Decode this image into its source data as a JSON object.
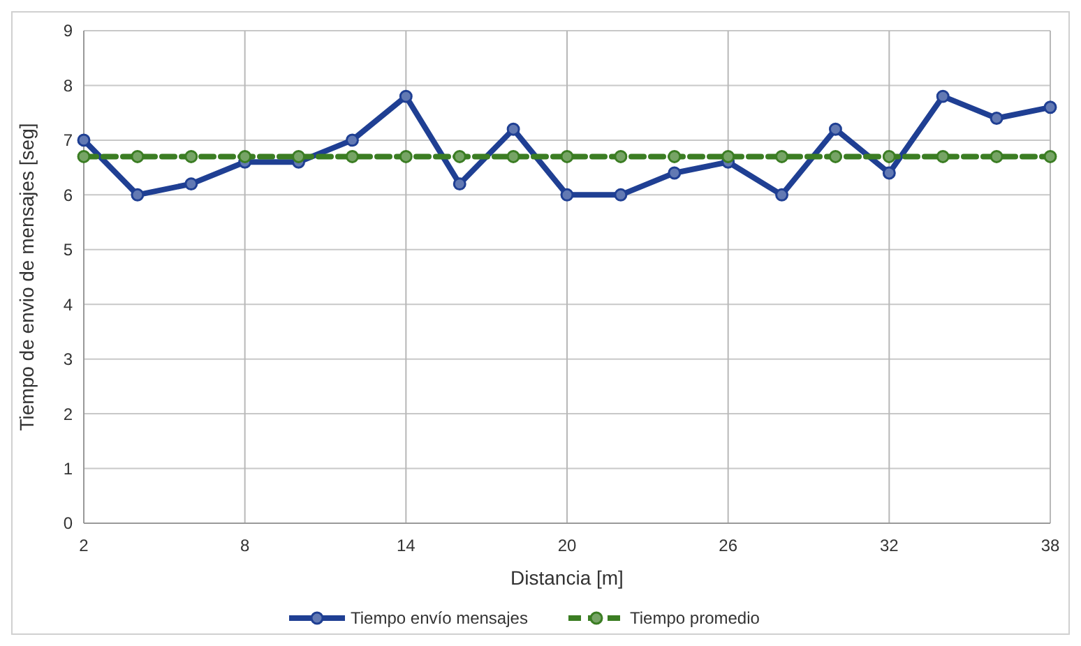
{
  "chart_data": {
    "type": "line",
    "xlabel": "Distancia [m]",
    "ylabel": "Tiempo de envio de mensajes [seg]",
    "x": [
      2,
      4,
      6,
      8,
      10,
      12,
      14,
      16,
      18,
      20,
      22,
      24,
      26,
      28,
      30,
      32,
      34,
      36,
      38
    ],
    "series": [
      {
        "name": "Tiempo envío mensajes",
        "color": "#1f3f93",
        "values": [
          7.0,
          6.0,
          6.2,
          6.6,
          6.6,
          7.0,
          7.8,
          6.2,
          7.2,
          6.0,
          6.0,
          6.4,
          6.6,
          6.0,
          7.2,
          6.4,
          7.8,
          7.4,
          7.6
        ],
        "line_style": "solid"
      },
      {
        "name": "Tiempo promedio",
        "color": "#3b7d23",
        "values": [
          6.7,
          6.7,
          6.7,
          6.7,
          6.7,
          6.7,
          6.7,
          6.7,
          6.7,
          6.7,
          6.7,
          6.7,
          6.7,
          6.7,
          6.7,
          6.7,
          6.7,
          6.7,
          6.7
        ],
        "line_style": "dashed"
      }
    ],
    "xlim": [
      2,
      38
    ],
    "xticks": [
      2,
      8,
      14,
      20,
      26,
      32,
      38
    ],
    "ylim": [
      0,
      9
    ],
    "yticks": [
      0,
      1,
      2,
      3,
      4,
      5,
      6,
      7,
      8,
      9
    ],
    "grid": true,
    "legend": "bottom",
    "marker": "circle"
  }
}
